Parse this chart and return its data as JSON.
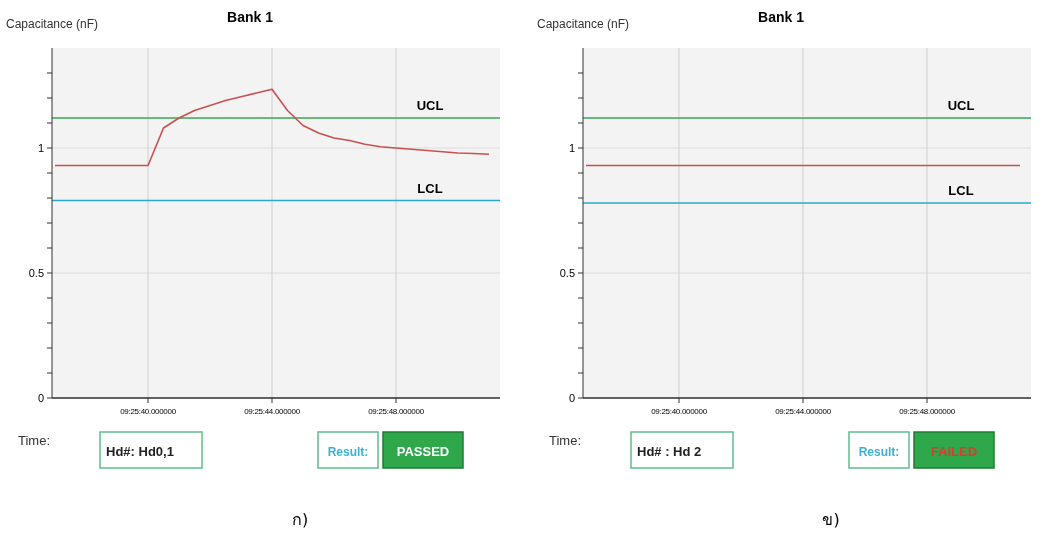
{
  "chart_data": [
    {
      "type": "line",
      "title": "Bank 1",
      "ylabel": "Capacitance (nF)",
      "xlabel": "Time:",
      "grid": true,
      "marker": "none",
      "line_style": "solid",
      "categories": [
        null,
        null,
        null,
        null,
        null,
        null,
        "09:25:40.000000",
        null,
        null,
        null,
        null,
        null,
        null,
        null,
        "09:25:44.000000",
        null,
        null,
        null,
        null,
        null,
        null,
        null,
        "09:25:48.000000",
        null,
        null,
        null,
        null,
        null,
        null
      ],
      "ylim": [
        0,
        1.4
      ],
      "yticks": [
        0,
        {
          "value": 0.1,
          "label": null
        },
        {
          "value": 0.2,
          "label": null
        },
        {
          "value": 0.3,
          "label": null
        },
        {
          "value": 0.4,
          "label": null
        },
        0.5,
        {
          "value": 0.6,
          "label": null
        },
        {
          "value": 0.7,
          "label": null
        },
        {
          "value": 0.8,
          "label": null
        },
        {
          "value": 0.9,
          "label": null
        },
        1,
        {
          "value": 1.1,
          "label": null
        },
        {
          "value": 1.2,
          "label": null
        },
        {
          "value": 1.3,
          "label": null
        }
      ],
      "series": [
        {
          "color": "#c8504f",
          "values": [
            0.93,
            0.93,
            0.93,
            0.93,
            0.93,
            0.93,
            0.93,
            1.08,
            1.12,
            1.15,
            1.17,
            1.19,
            1.205,
            1.22,
            1.235,
            1.15,
            1.09,
            1.06,
            1.04,
            1.03,
            1.015,
            1.005,
            1.0,
            0.995,
            0.99,
            0.985,
            0.98,
            0.978,
            0.975
          ]
        }
      ],
      "ref_lines": [
        {
          "axis": "y",
          "value": 1.12,
          "label": "UCL",
          "color": "#3aa655"
        },
        {
          "axis": "y",
          "value": 0.79,
          "label": "LCL",
          "color": "#2aa8cc"
        }
      ],
      "annotations": [
        "Hd#: Hd0,1",
        "Result:",
        "PASSED",
        "ก)"
      ]
    },
    {
      "type": "line",
      "title": "Bank 1",
      "ylabel": "Capacitance (nF)",
      "xlabel": "Time:",
      "grid": true,
      "marker": "none",
      "line_style": "solid",
      "categories": [
        null,
        null,
        null,
        null,
        null,
        null,
        "09:25:40.000000",
        null,
        null,
        null,
        null,
        null,
        null,
        null,
        "09:25:44.000000",
        null,
        null,
        null,
        null,
        null,
        null,
        null,
        "09:25:48.000000",
        null,
        null,
        null,
        null,
        null,
        null
      ],
      "ylim": [
        0,
        1.4
      ],
      "yticks": [
        0,
        {
          "value": 0.1,
          "label": null
        },
        {
          "value": 0.2,
          "label": null
        },
        {
          "value": 0.3,
          "label": null
        },
        {
          "value": 0.4,
          "label": null
        },
        0.5,
        {
          "value": 0.6,
          "label": null
        },
        {
          "value": 0.7,
          "label": null
        },
        {
          "value": 0.8,
          "label": null
        },
        {
          "value": 0.9,
          "label": null
        },
        1,
        {
          "value": 1.1,
          "label": null
        },
        {
          "value": 1.2,
          "label": null
        },
        {
          "value": 1.3,
          "label": null
        }
      ],
      "series": [
        {
          "color": "#c8504f",
          "values": [
            0.93,
            0.93,
            0.93,
            0.93,
            0.93,
            0.93,
            0.93,
            0.93,
            0.93,
            0.93,
            0.93,
            0.93,
            0.93,
            0.93,
            0.93,
            0.93,
            0.93,
            0.93,
            0.93,
            0.93,
            0.93,
            0.93,
            0.93,
            0.93,
            0.93,
            0.93,
            0.93,
            0.93,
            0.93
          ]
        }
      ],
      "ref_lines": [
        {
          "axis": "y",
          "value": 1.12,
          "label": "UCL",
          "color": "#3aa655"
        },
        {
          "axis": "y",
          "value": 0.78,
          "label": "LCL",
          "color": "#2aa8cc"
        }
      ],
      "annotations": [
        "Hd# : Hd 2",
        "Result:",
        "FAILED",
        "ข)"
      ]
    }
  ]
}
